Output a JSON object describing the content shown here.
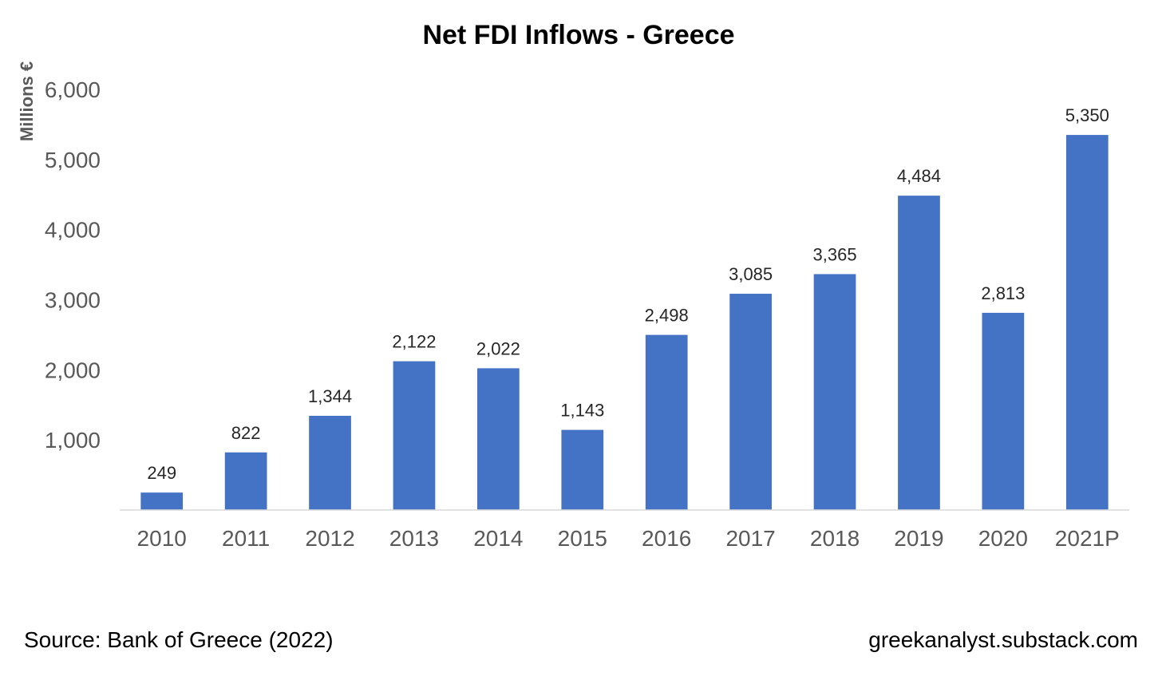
{
  "chart_data": {
    "type": "bar",
    "title": "Net FDI Inflows - Greece",
    "xlabel": "",
    "ylabel": "Millions €",
    "categories": [
      "2010",
      "2011",
      "2012",
      "2013",
      "2014",
      "2015",
      "2016",
      "2017",
      "2018",
      "2019",
      "2020",
      "2021P"
    ],
    "values": [
      249,
      822,
      1344,
      2122,
      2022,
      1143,
      2498,
      3085,
      3365,
      4484,
      2813,
      5350
    ],
    "data_labels": [
      "249",
      "822",
      "1,344",
      "2,122",
      "2,022",
      "1,143",
      "2,498",
      "3,085",
      "3,365",
      "4,484",
      "2,813",
      "5,350"
    ],
    "yticks": [
      1000,
      2000,
      3000,
      4000,
      5000,
      6000
    ],
    "ytick_labels": [
      "1,000",
      "2,000",
      "3,000",
      "4,000",
      "5,000",
      "6,000"
    ],
    "ylim": [
      0,
      6000
    ],
    "grid": false,
    "legend": "none",
    "bar_color": "#4472C4",
    "axis_color": "#D9D9D9"
  },
  "footer": {
    "source": "Source: Bank of Greece (2022)",
    "site": "greekanalyst.substack.com"
  }
}
